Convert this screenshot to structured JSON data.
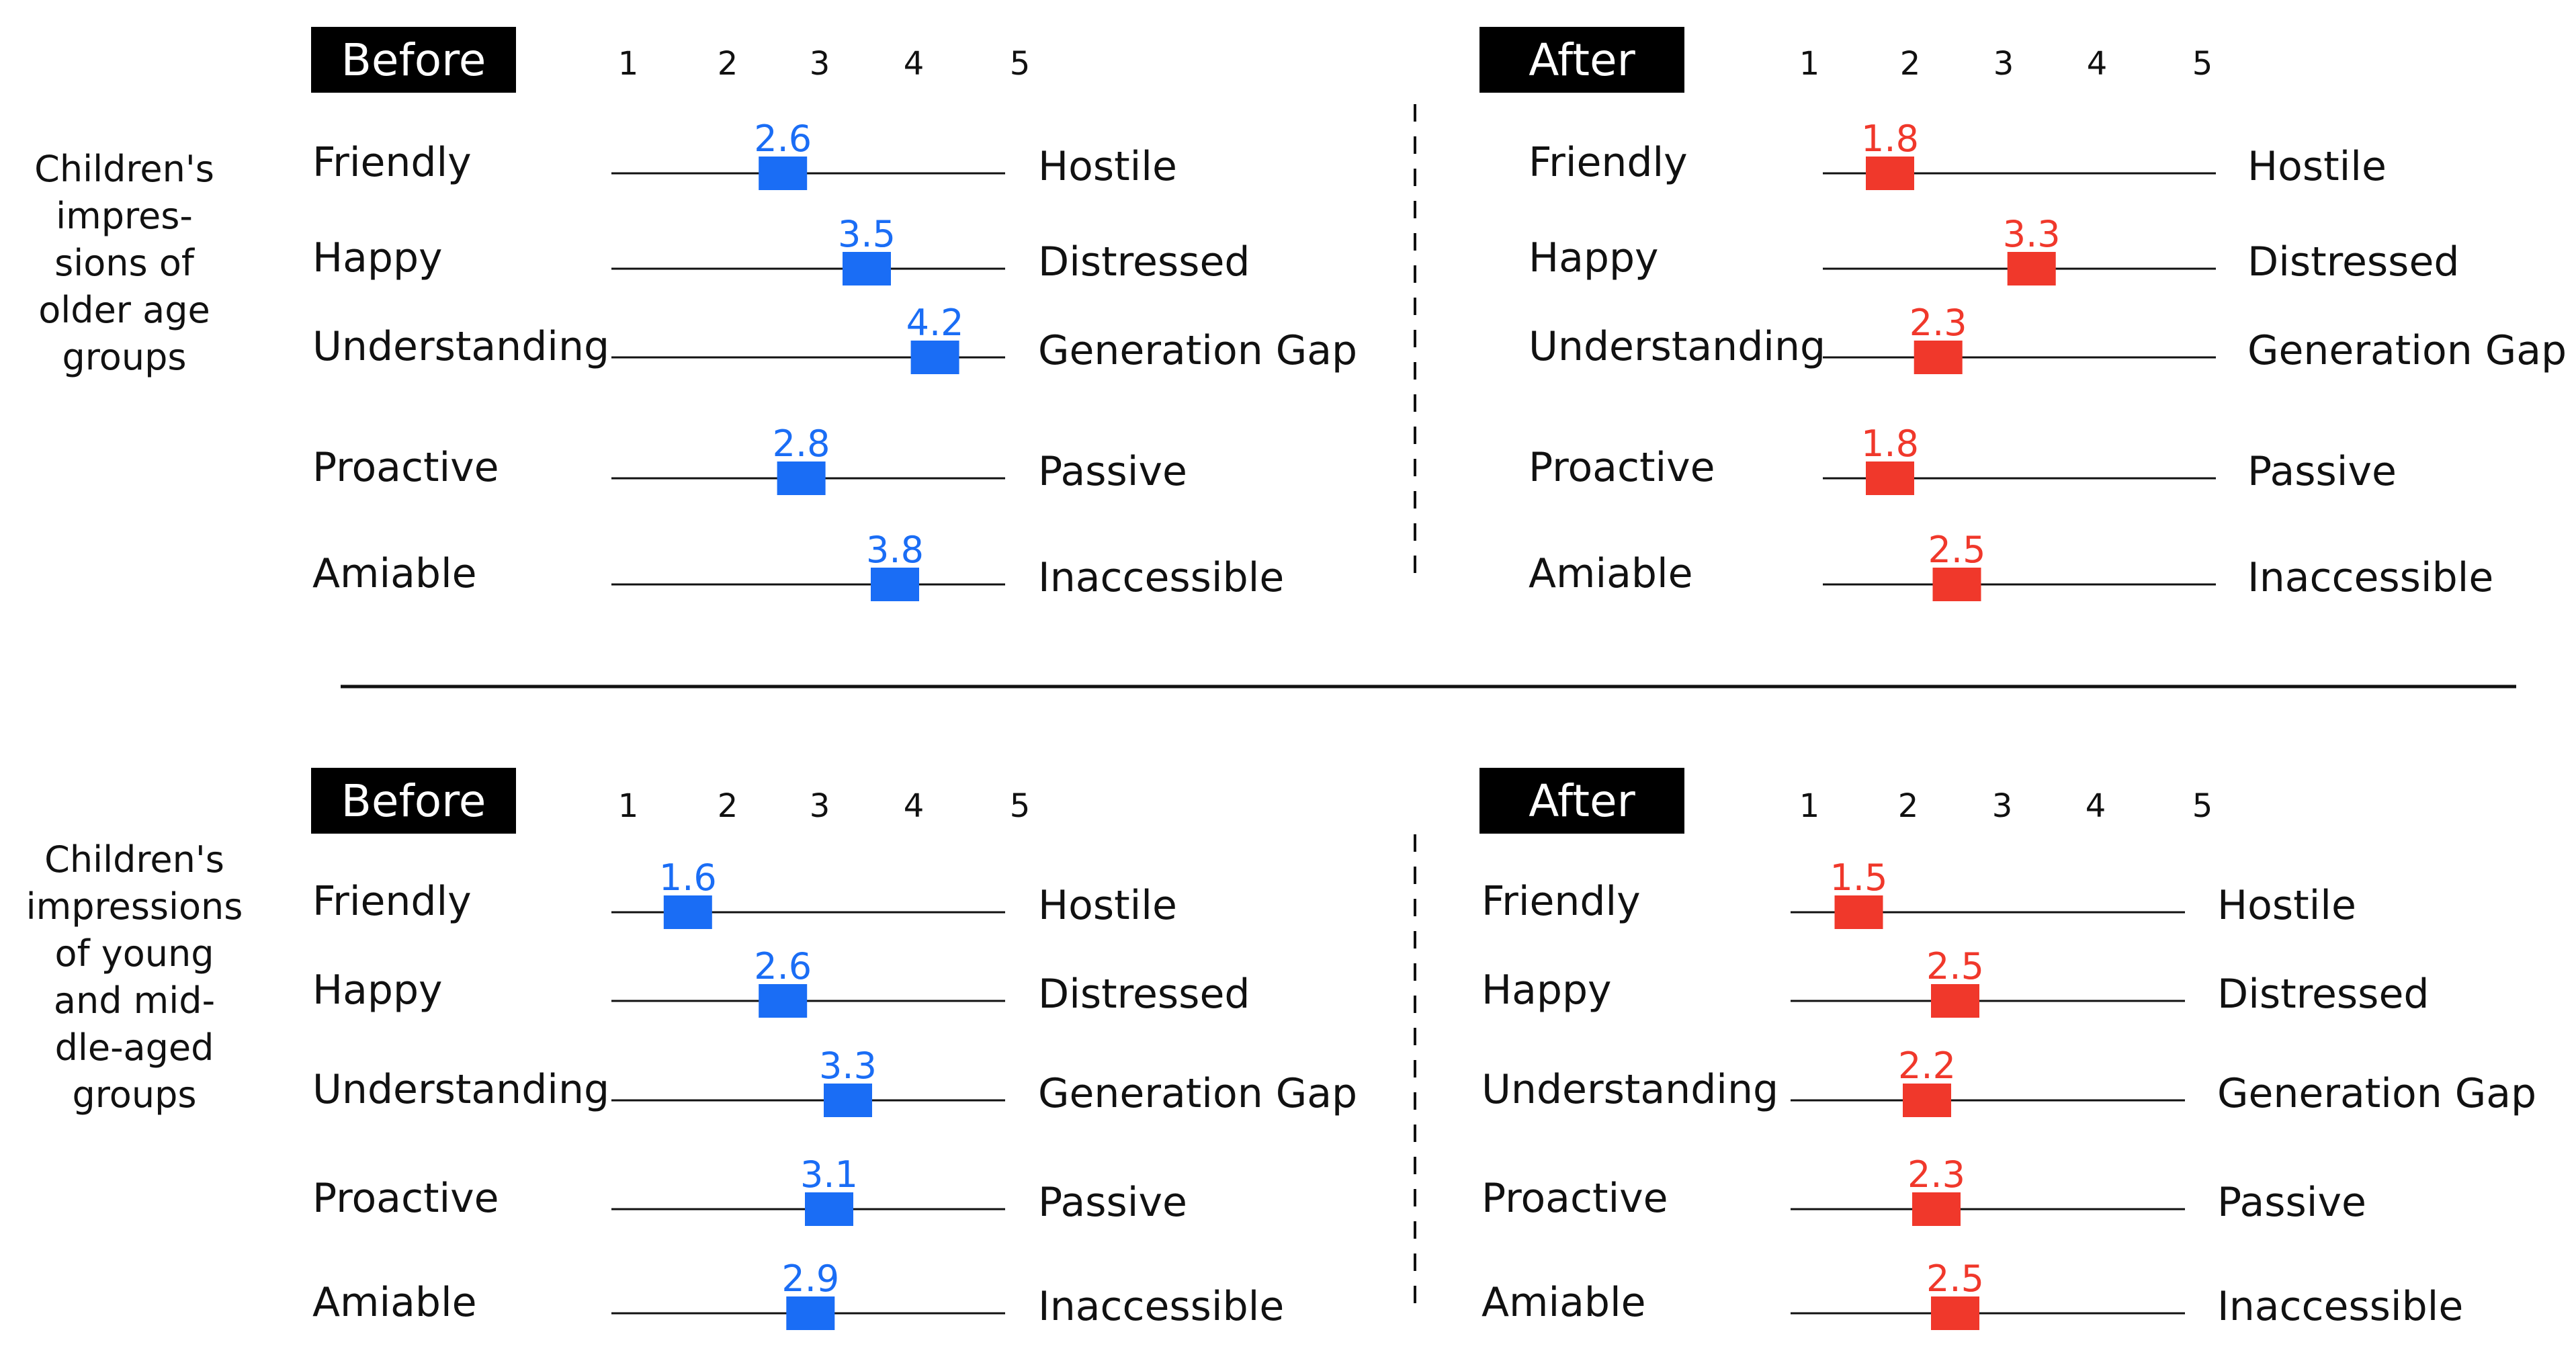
{
  "colors": {
    "before": "#1a6df5",
    "after": "#f0382b",
    "ink": "#111111",
    "badge_bg": "#000000",
    "badge_text": "#ffffff"
  },
  "chart_data": [
    {
      "type": "semantic-differential",
      "group": "Children's impressions of older age groups",
      "group_lines": [
        "Children's",
        "impres-",
        "sions of",
        "older age",
        "groups"
      ],
      "scale": [
        1,
        2,
        3,
        4,
        5
      ],
      "panels": [
        {
          "title": "Before",
          "series": "before",
          "rows": [
            {
              "left": "Friendly",
              "right": "Hostile",
              "value": 2.6
            },
            {
              "left": "Happy",
              "right": "Distressed",
              "value": 3.5
            },
            {
              "left": "Understanding",
              "right": "Generation Gap",
              "value": 4.2
            },
            {
              "left": "Proactive",
              "right": "Passive",
              "value": 2.8
            },
            {
              "left": "Amiable",
              "right": "Inaccessible",
              "value": 3.8
            }
          ]
        },
        {
          "title": "After",
          "series": "after",
          "rows": [
            {
              "left": "Friendly",
              "right": "Hostile",
              "value": 1.8
            },
            {
              "left": "Happy",
              "right": "Distressed",
              "value": 3.3
            },
            {
              "left": "Understanding",
              "right": "Generation Gap",
              "value": 2.3
            },
            {
              "left": "Proactive",
              "right": "Passive",
              "value": 1.8
            },
            {
              "left": "Amiable",
              "right": "Inaccessible",
              "value": 2.5
            }
          ]
        }
      ]
    },
    {
      "type": "semantic-differential",
      "group": "Children's impressions of young and middle-aged groups",
      "group_lines": [
        "Children's",
        "impressions",
        "of young",
        "and mid-",
        "dle-aged",
        "groups"
      ],
      "scale": [
        1,
        2,
        3,
        4,
        5
      ],
      "panels": [
        {
          "title": "Before",
          "series": "before",
          "rows": [
            {
              "left": "Friendly",
              "right": "Hostile",
              "value": 1.6
            },
            {
              "left": "Happy",
              "right": "Distressed",
              "value": 2.6
            },
            {
              "left": "Understanding",
              "right": "Generation Gap",
              "value": 3.3
            },
            {
              "left": "Proactive",
              "right": "Passive",
              "value": 3.1
            },
            {
              "left": "Amiable",
              "right": "Inaccessible",
              "value": 2.9
            }
          ]
        },
        {
          "title": "After",
          "series": "after",
          "rows": [
            {
              "left": "Friendly",
              "right": "Hostile",
              "value": 1.5
            },
            {
              "left": "Happy",
              "right": "Distressed",
              "value": 2.5
            },
            {
              "left": "Understanding",
              "right": "Generation Gap",
              "value": 2.2
            },
            {
              "left": "Proactive",
              "right": "Passive",
              "value": 2.3
            },
            {
              "left": "Amiable",
              "right": "Inaccessible",
              "value": 2.5
            }
          ]
        }
      ]
    }
  ]
}
